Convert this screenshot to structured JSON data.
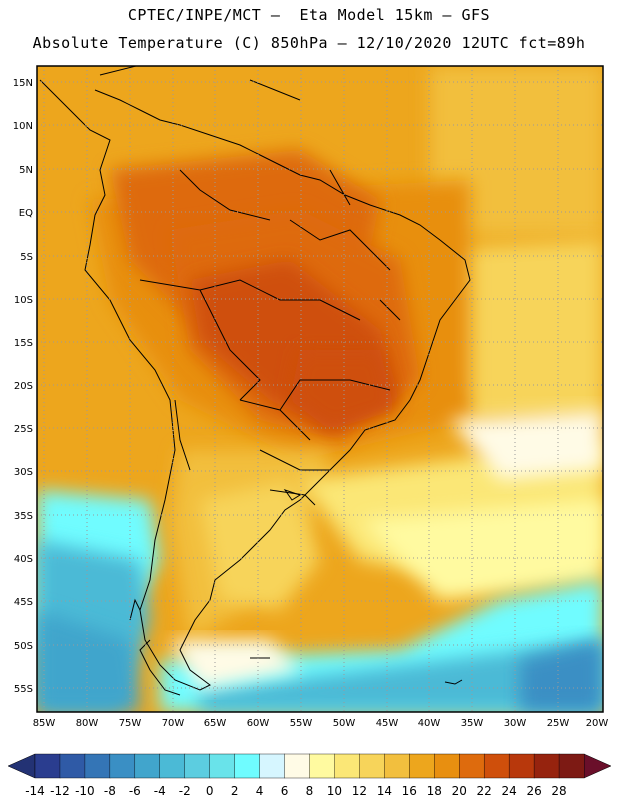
{
  "header": {
    "line1": "CPTEC/INPE/MCT –  Eta Model 15km – GFS",
    "line2": "Absolute Temperature (C) 850hPa – 12/10/2020 12UTC fct=89h"
  },
  "map": {
    "lat_labels": [
      "15N",
      "10N",
      "5N",
      "EQ",
      "5S",
      "10S",
      "15S",
      "20S",
      "25S",
      "30S",
      "35S",
      "40S",
      "45S",
      "50S",
      "55S"
    ],
    "lon_labels": [
      "85W",
      "80W",
      "75W",
      "70W",
      "65W",
      "60W",
      "55W",
      "50W",
      "45W",
      "40W",
      "35W",
      "30W",
      "25W",
      "20W"
    ]
  },
  "colorbar": {
    "labels": [
      "-14",
      "-12",
      "-10",
      "-8",
      "-6",
      "-4",
      "-2",
      "0",
      "2",
      "4",
      "6",
      "8",
      "10",
      "12",
      "14",
      "16",
      "18",
      "20",
      "22",
      "24",
      "26",
      "28"
    ],
    "colors": [
      "#2a3d8f",
      "#2f5aa6",
      "#3475b6",
      "#3a8fc4",
      "#41a5cc",
      "#4bbad6",
      "#5ccde0",
      "#69e3ea",
      "#6ffcff",
      "#d6f6ff",
      "#fffbe6",
      "#fffaa0",
      "#fbe776",
      "#f7d45a",
      "#f2bf3e",
      "#eda61d",
      "#e88f10",
      "#de6b0d",
      "#cf4f0b",
      "#b8380c",
      "#96230e",
      "#7d1a14"
    ],
    "under_color": "#233274",
    "over_color": "#6a0f2a"
  }
}
